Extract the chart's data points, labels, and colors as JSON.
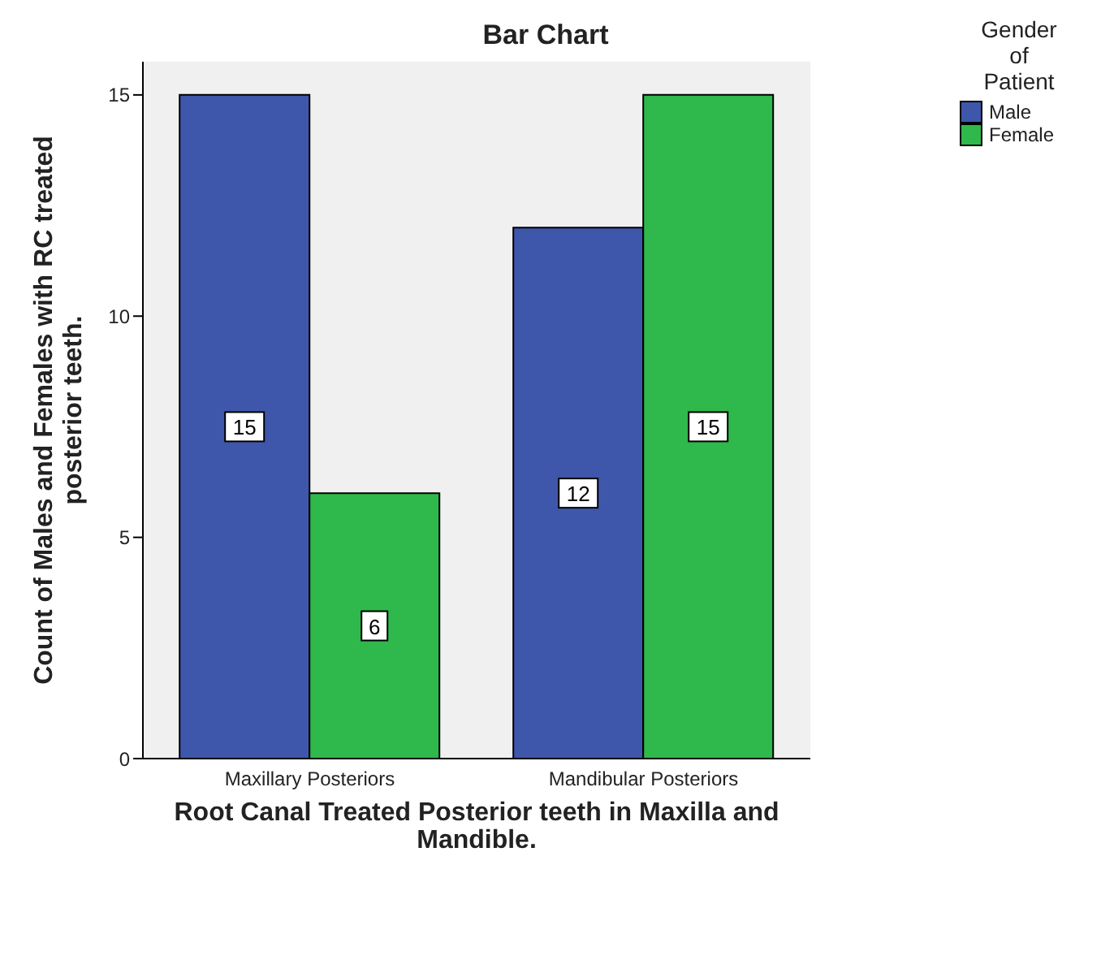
{
  "chart_data": {
    "type": "bar",
    "title": "Bar Chart",
    "xlabel": "Root Canal Treated Posterior teeth in Maxilla and Mandible.",
    "ylabel": "Count of Males and Females with RC treated posterior teeth.",
    "legend_title": "Gender of Patient",
    "categories": [
      "Maxillary Posteriors",
      "Mandibular Posteriors"
    ],
    "series": [
      {
        "name": "Male",
        "color": "#3e57aa",
        "values": [
          15,
          12
        ]
      },
      {
        "name": "Female",
        "color": "#2fb84b",
        "values": [
          6,
          15
        ]
      }
    ],
    "ylim": [
      0,
      15.75
    ],
    "yticks": [
      0,
      5,
      10,
      15
    ],
    "grid": false,
    "legend": "top right",
    "data_labels": true
  }
}
